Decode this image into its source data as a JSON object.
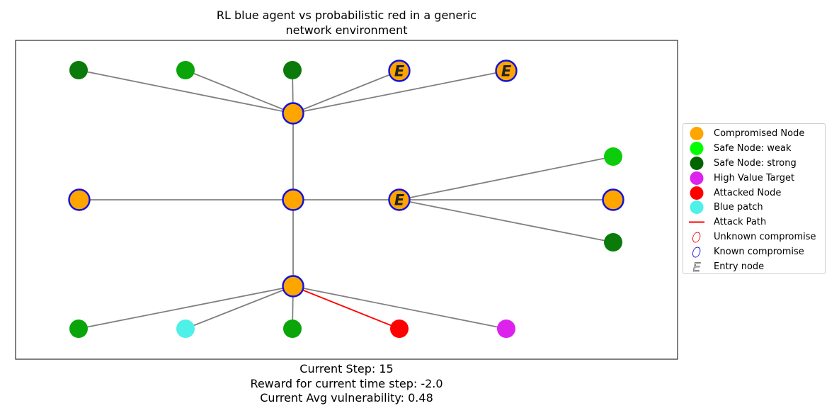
{
  "title_lines": [
    "RL blue agent vs probabilistic red in a generic",
    "network environment"
  ],
  "footer": {
    "step": "Current Step: 15",
    "reward": "Reward for current time step: -2.0",
    "vulnerability": "Current Avg vulnerability: 0.48"
  },
  "colors": {
    "compromised": "#ffa500",
    "safe_weak": "#00ff00",
    "safe_strong": "#006400",
    "high_value": "#dd22ee",
    "attacked": "#ff0000",
    "blue_patch": "#4ff0e8",
    "attack_path": "#ff0000",
    "known_ring": "#1010dd",
    "unknown_ring": "#ff0000",
    "edge": "#808080"
  },
  "legend": [
    {
      "symbol": "dot",
      "color": "#ffa500",
      "label": "Compromised Node"
    },
    {
      "symbol": "dot",
      "color": "#00ff00",
      "label": "Safe Node: weak"
    },
    {
      "symbol": "dot",
      "color": "#006400",
      "label": "Safe Node: strong"
    },
    {
      "symbol": "dot",
      "color": "#dd22ee",
      "label": "High Value Target"
    },
    {
      "symbol": "dot",
      "color": "#ff0000",
      "label": "Attacked Node"
    },
    {
      "symbol": "dot",
      "color": "#4ff0e8",
      "label": "Blue patch"
    },
    {
      "symbol": "line",
      "color": "#ff0000",
      "label": "Attack Path"
    },
    {
      "symbol": "ring",
      "color": "#ff0000",
      "label": "Unknown compromise"
    },
    {
      "symbol": "ring",
      "color": "#1010dd",
      "label": "Known compromise"
    },
    {
      "symbol": "entry",
      "color": "#555555",
      "label": "Entry node"
    }
  ],
  "nodes": [
    {
      "id": "n0",
      "color": "#0a7a0a",
      "state": "safe-strong"
    },
    {
      "id": "n1",
      "color": "#09a509",
      "state": "safe"
    },
    {
      "id": "n2",
      "color": "#0a7a0a",
      "state": "safe-strong"
    },
    {
      "id": "n3",
      "color": "#ffa500",
      "state": "compromised",
      "known": true,
      "entry": true
    },
    {
      "id": "n4",
      "color": "#ffa500",
      "state": "compromised",
      "known": true,
      "entry": true
    },
    {
      "id": "n5",
      "color": "#ffa500",
      "state": "compromised",
      "known": true
    },
    {
      "id": "n6",
      "color": "#ffa500",
      "state": "compromised",
      "known": true
    },
    {
      "id": "n7",
      "color": "#ffa500",
      "state": "compromised",
      "known": true
    },
    {
      "id": "n8",
      "color": "#ffa500",
      "state": "compromised",
      "known": true,
      "entry": true
    },
    {
      "id": "n9",
      "color": "#0ccc0c",
      "state": "safe-weak"
    },
    {
      "id": "n10",
      "color": "#ffa500",
      "state": "compromised",
      "known": true
    },
    {
      "id": "n11",
      "color": "#0a7a0a",
      "state": "safe-strong"
    },
    {
      "id": "n12",
      "color": "#ffa500",
      "state": "compromised",
      "known": true
    },
    {
      "id": "n13",
      "color": "#09a509",
      "state": "safe"
    },
    {
      "id": "n14",
      "color": "#4ff0e8",
      "state": "blue-patch"
    },
    {
      "id": "n15",
      "color": "#09a509",
      "state": "safe"
    },
    {
      "id": "n16",
      "color": "#ff0000",
      "state": "attacked"
    },
    {
      "id": "n17",
      "color": "#dd22ee",
      "state": "high-value"
    }
  ],
  "edges": [
    [
      "n5",
      "n0"
    ],
    [
      "n5",
      "n1"
    ],
    [
      "n5",
      "n2"
    ],
    [
      "n5",
      "n3"
    ],
    [
      "n5",
      "n4"
    ],
    [
      "n5",
      "n7"
    ],
    [
      "n7",
      "n6"
    ],
    [
      "n7",
      "n8"
    ],
    [
      "n8",
      "n9"
    ],
    [
      "n8",
      "n10"
    ],
    [
      "n8",
      "n11"
    ],
    [
      "n7",
      "n12"
    ],
    [
      "n12",
      "n13"
    ],
    [
      "n12",
      "n14"
    ],
    [
      "n12",
      "n15"
    ],
    [
      "n12",
      "n17"
    ]
  ],
  "attack_edges": [
    [
      "n12",
      "n16"
    ]
  ],
  "entry_marker": "E"
}
